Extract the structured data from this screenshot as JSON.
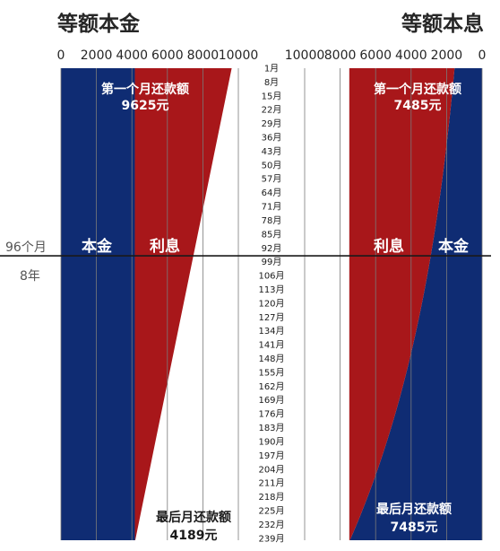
{
  "left_title": "等额本金",
  "right_title": "等额本息",
  "side_labels": {
    "months": "96个月",
    "years": "8年"
  },
  "colors": {
    "principal": "#0f2c73",
    "interest": "#a8171a",
    "grid": "#7a7a7a",
    "divider": "#1a1a1a"
  },
  "chart_data": [
    {
      "type": "area",
      "title": "等额本金",
      "x_direction": "left-to-right",
      "xlim": [
        0,
        10000
      ],
      "x_ticks": [
        "0",
        "2000",
        "4000",
        "6000",
        "8000",
        "10000"
      ],
      "month_range": [
        1,
        240
      ],
      "series": [
        {
          "name": "本金",
          "start": 4167,
          "end": 4167
        },
        {
          "name": "利息",
          "start": 5458,
          "end": 22
        }
      ],
      "annotations": {
        "first": {
          "text": "第一个月还款额",
          "value": "9625元"
        },
        "last": {
          "text": "最后月还款额",
          "value": "4189元"
        }
      }
    },
    {
      "type": "area",
      "title": "等额本息",
      "x_direction": "right-to-left",
      "xlim": [
        0,
        10000
      ],
      "x_ticks": [
        "0",
        "2000",
        "4000",
        "6000",
        "8000",
        "10000"
      ],
      "month_range": [
        1,
        240
      ],
      "series": [
        {
          "name": "本金",
          "start": 1552,
          "end": 7450
        },
        {
          "name": "利息",
          "start": 5933,
          "end": 35
        }
      ],
      "annotations": {
        "first": {
          "text": "第一个月还款额",
          "value": "7485元"
        },
        "last": {
          "text": "最后月还款额",
          "value": "7485元"
        }
      }
    }
  ],
  "month_axis": {
    "labels": [
      "1月",
      "8月",
      "15月",
      "22月",
      "29月",
      "36月",
      "43月",
      "50月",
      "57月",
      "64月",
      "71月",
      "78月",
      "85月",
      "92月",
      "99月",
      "106月",
      "113月",
      "120月",
      "127月",
      "134月",
      "141月",
      "148月",
      "155月",
      "162月",
      "169月",
      "176月",
      "183月",
      "190月",
      "197月",
      "204月",
      "211月",
      "218月",
      "225月",
      "232月",
      "239月"
    ],
    "divider_month": 96
  }
}
